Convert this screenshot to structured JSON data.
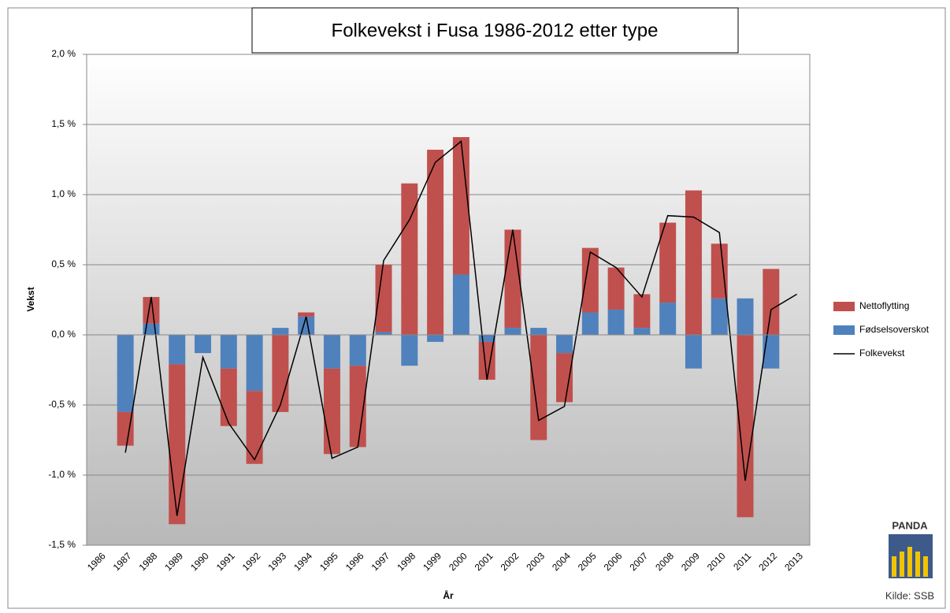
{
  "chart_data": {
    "type": "stacked_bar_line",
    "title": "Folkevekst i Fusa 1986-2012 etter type",
    "x_label": "År",
    "y_label": "Vekst",
    "categories": [
      "1986",
      "1987",
      "1988",
      "1989",
      "1990",
      "1991",
      "1992",
      "1993",
      "1994",
      "1995",
      "1996",
      "1997",
      "1998",
      "1999",
      "2000",
      "2001",
      "2002",
      "2003",
      "2004",
      "2005",
      "2006",
      "2007",
      "2008",
      "2009",
      "2010",
      "2011",
      "2012",
      "2013"
    ],
    "series": [
      {
        "name": "Nettoflytting",
        "kind": "bar",
        "color": "#c0504d",
        "values": [
          null,
          -0.24,
          0.19,
          -1.14,
          0,
          -0.41,
          -0.52,
          -0.55,
          0.03,
          -0.61,
          -0.58,
          0.48,
          1.08,
          1.32,
          0.98,
          -0.27,
          0.7,
          -0.75,
          -0.35,
          0.46,
          0.3,
          0.24,
          0.57,
          1.03,
          0.39,
          -1.3,
          0.47,
          null
        ]
      },
      {
        "name": "Fødselsoverskot",
        "kind": "bar",
        "color": "#4f81bd",
        "values": [
          null,
          -0.55,
          0.08,
          -0.21,
          -0.13,
          -0.24,
          -0.4,
          0.05,
          0.13,
          -0.24,
          -0.22,
          0.02,
          -0.22,
          -0.05,
          0.43,
          -0.05,
          0.05,
          0.05,
          -0.13,
          0.16,
          0.18,
          0.05,
          0.23,
          -0.24,
          0.26,
          0.26,
          -0.24,
          null
        ]
      },
      {
        "name": "Folkevekst",
        "kind": "line",
        "color": "#000000",
        "values": [
          null,
          -0.84,
          0.27,
          -1.29,
          -0.16,
          -0.63,
          -0.89,
          -0.5,
          0.13,
          -0.88,
          -0.8,
          0.53,
          0.82,
          1.23,
          1.38,
          -0.32,
          0.75,
          -0.61,
          -0.51,
          0.59,
          0.48,
          0.27,
          0.85,
          0.84,
          0.73,
          -1.04,
          0.18,
          0.29
        ]
      }
    ],
    "ylim": [
      -1.5,
      2.0
    ],
    "yticks": [
      {
        "value": -1.5,
        "label": "-1,5 %"
      },
      {
        "value": -1.0,
        "label": "-1,0 %"
      },
      {
        "value": -0.5,
        "label": "-0,5 %"
      },
      {
        "value": 0.0,
        "label": "0,0 %"
      },
      {
        "value": 0.5,
        "label": "0,5 %"
      },
      {
        "value": 1.0,
        "label": "1,0 %"
      },
      {
        "value": 1.5,
        "label": "1,5 %"
      },
      {
        "value": 2.0,
        "label": "2,0 %"
      }
    ],
    "grid": true,
    "legend": "right",
    "logo": {
      "title": "PANDA",
      "source": "Kilde: SSB"
    }
  }
}
